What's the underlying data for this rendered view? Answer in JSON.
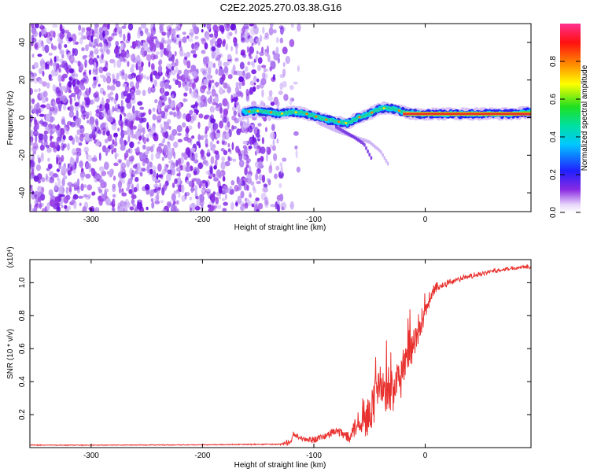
{
  "title": "C2E2.2025.270.03.38.G16",
  "chart_data": [
    {
      "type": "heatmap",
      "name": "spectrogram",
      "title": "C2E2.2025.270.03.38.G16",
      "xlabel": "Height of straight line (km)",
      "ylabel": "Frequency (Hz)",
      "xlim": [
        -355,
        95
      ],
      "ylim": [
        -50,
        50
      ],
      "xticks": [
        -300,
        -200,
        -100,
        0
      ],
      "yticks": [
        -40,
        -20,
        0,
        20,
        40
      ],
      "noise_region_x": [
        -355,
        -125
      ],
      "noise_fade_x": [
        -160,
        -110
      ],
      "signal_start_x": -163,
      "carrier": {
        "x": [
          -163,
          -150,
          -140,
          -130,
          -120,
          -110,
          -100,
          -90,
          -80,
          -70,
          -60,
          -50,
          -40,
          -30,
          -20,
          -10,
          0,
          10,
          20,
          30,
          40,
          50,
          60,
          70,
          80,
          95
        ],
        "freq": [
          3,
          3.5,
          3,
          2,
          3,
          2.5,
          1,
          -1,
          -2,
          -3,
          0,
          2,
          5,
          5,
          3,
          2,
          2,
          2,
          2,
          2,
          2,
          2,
          2,
          2,
          2,
          3
        ]
      },
      "side_branch": {
        "x": [
          -95,
          -80,
          -65,
          -50,
          -40,
          -33
        ],
        "freq": [
          -3,
          -7,
          -10,
          -13,
          -18,
          -25
        ]
      },
      "side_branch2": {
        "x": [
          -80,
          -65,
          -55,
          -48
        ],
        "freq": [
          -5,
          -10,
          -14,
          -22
        ]
      },
      "colorbar": {
        "label": "Normalized spectral amplitude",
        "range": [
          0,
          1
        ],
        "ticks": [
          0.0,
          0.2,
          0.4,
          0.6,
          0.8
        ],
        "tick_labels": [
          "0.0",
          "0.2",
          "0.4",
          "0.6",
          "0.8"
        ]
      }
    },
    {
      "type": "line",
      "name": "snr",
      "xlabel": "Height of straight line (km)",
      "ylabel": "SNR (10 * v/v)",
      "multiplier": "(x10⁴)",
      "xlim": [
        -355,
        95
      ],
      "ylim": [
        0,
        1.14
      ],
      "xticks": [
        -300,
        -200,
        -100,
        0
      ],
      "yticks": [
        0.2,
        0.4,
        0.6,
        0.8,
        1.0
      ],
      "color": "#e8312e",
      "series": [
        {
          "name": "SNR",
          "x": [
            -355,
            -300,
            -250,
            -200,
            -150,
            -130,
            -120,
            -119,
            -110,
            -100,
            -90,
            -80,
            -70,
            -60,
            -50,
            -45,
            -40,
            -35,
            -30,
            -25,
            -20,
            -15,
            -10,
            -5,
            0,
            5,
            10,
            20,
            30,
            40,
            50,
            60,
            70,
            80,
            90,
            95
          ],
          "y": [
            0.015,
            0.015,
            0.016,
            0.017,
            0.02,
            0.02,
            0.035,
            0.08,
            0.05,
            0.05,
            0.07,
            0.1,
            0.07,
            0.15,
            0.18,
            0.33,
            0.38,
            0.28,
            0.33,
            0.38,
            0.45,
            0.58,
            0.6,
            0.68,
            0.82,
            0.92,
            0.97,
            1.0,
            1.02,
            1.04,
            1.05,
            1.07,
            1.08,
            1.09,
            1.1,
            1.09
          ],
          "noise_amplitude": [
            0.003,
            0.003,
            0.003,
            0.003,
            0.004,
            0.005,
            0.03,
            0.02,
            0.02,
            0.03,
            0.03,
            0.04,
            0.05,
            0.1,
            0.16,
            0.2,
            0.2,
            0.22,
            0.22,
            0.18,
            0.15,
            0.18,
            0.15,
            0.12,
            0.08,
            0.06,
            0.04,
            0.03,
            0.02,
            0.02,
            0.02,
            0.015,
            0.015,
            0.015,
            0.015,
            0.015
          ]
        }
      ]
    }
  ]
}
